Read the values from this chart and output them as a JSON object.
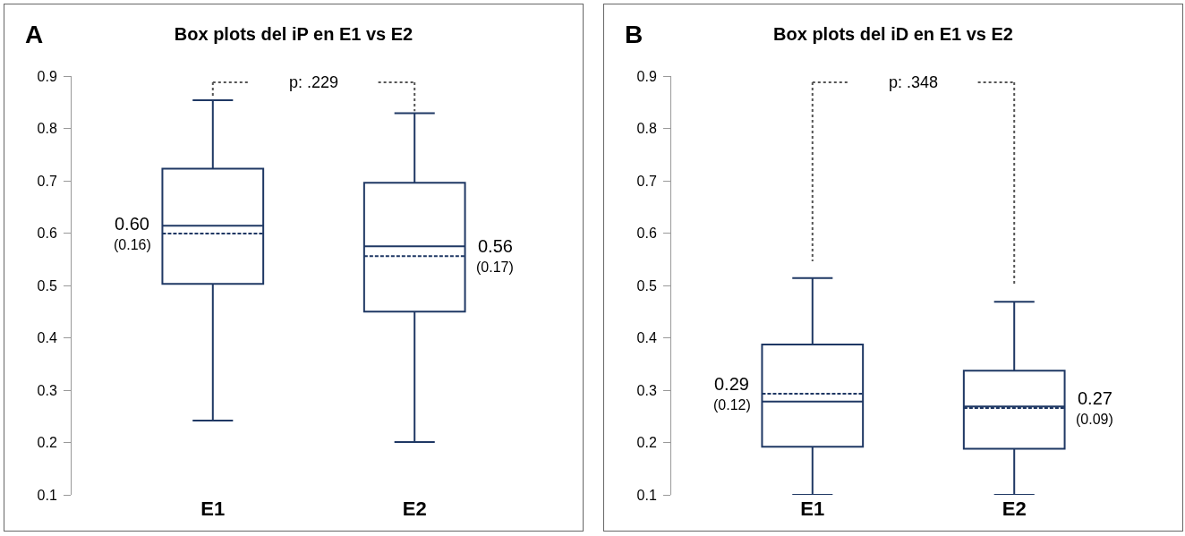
{
  "chart_data": [
    {
      "type": "box",
      "title": "Box plots del iP en E1 vs E2",
      "categories": [
        "E1",
        "E2"
      ],
      "series": [
        {
          "color": "#1f3864",
          "boxes": [
            {
              "low": 0.242,
              "q1": 0.503,
              "median": 0.614,
              "q3": 0.723,
              "high": 0.854,
              "mean": 0.599
            },
            {
              "low": 0.201,
              "q1": 0.45,
              "median": 0.575,
              "q3": 0.696,
              "high": 0.829,
              "mean": 0.556
            }
          ]
        }
      ],
      "ylim": [
        0.1,
        0.9
      ],
      "yticks": [
        0.1,
        0.2,
        0.3,
        0.4,
        0.5,
        0.6,
        0.7,
        0.8,
        0.9
      ],
      "grid": false,
      "annotations": [
        "A",
        "p: .229",
        "0.60",
        "(0.16)",
        "0.56",
        "(0.17)"
      ]
    },
    {
      "type": "box",
      "title": "Box plots del iD en E1 vs E2",
      "categories": [
        "E1",
        "E2"
      ],
      "series": [
        {
          "color": "#1f3864",
          "boxes": [
            {
              "low": 0.1,
              "q1": 0.192,
              "median": 0.278,
              "q3": 0.387,
              "high": 0.514,
              "mean": 0.293
            },
            {
              "low": 0.1,
              "q1": 0.188,
              "median": 0.269,
              "q3": 0.337,
              "high": 0.469,
              "mean": 0.266
            }
          ]
        }
      ],
      "ylim": [
        0.1,
        0.9
      ],
      "yticks": [
        0.1,
        0.2,
        0.3,
        0.4,
        0.5,
        0.6,
        0.7,
        0.8,
        0.9
      ],
      "grid": false,
      "annotations": [
        "B",
        "p: .348",
        "0.29",
        "(0.12)",
        "0.27",
        "(0.09)"
      ]
    }
  ]
}
